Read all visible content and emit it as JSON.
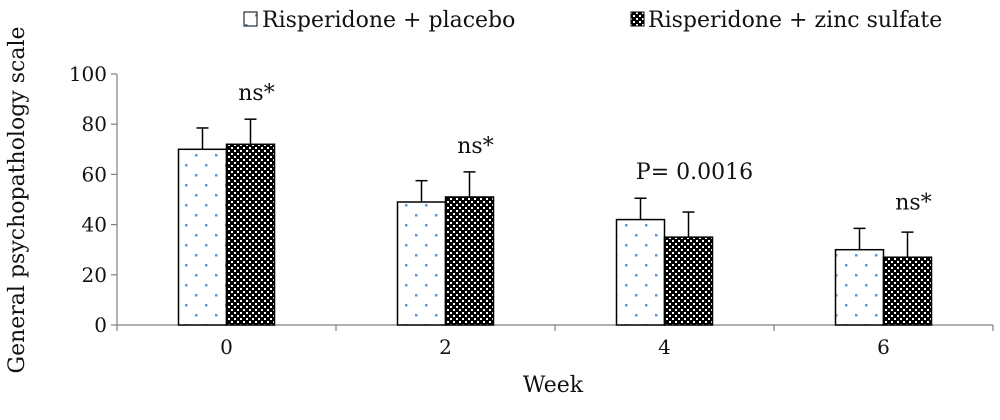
{
  "chart_data": {
    "type": "bar",
    "title": "",
    "xlabel": "Week",
    "ylabel": "General psychopathology scale",
    "categories": [
      "0",
      "2",
      "4",
      "6"
    ],
    "ylim": [
      0,
      100
    ],
    "yticks": [
      "0",
      "20",
      "40",
      "60",
      "80",
      "100"
    ],
    "grid": false,
    "legend_position": "top",
    "series": [
      {
        "name": "Risperidone + placebo",
        "values": [
          70,
          49,
          42,
          30
        ],
        "error": [
          8.5,
          8.5,
          8.5,
          8.5
        ],
        "pattern": "dotted"
      },
      {
        "name": "Risperidone + zinc sulfate",
        "values": [
          72,
          51,
          35,
          27
        ],
        "error": [
          10,
          10,
          10,
          10
        ],
        "pattern": "checkered"
      }
    ],
    "annotations": [
      "ns*",
      "ns*",
      "P= 0.0016",
      "ns*"
    ],
    "colors": {
      "bar_border": "#000000",
      "dot_pattern": "#5b9bd5",
      "checker_dark": "#000000",
      "checker_light": "#ffffff"
    }
  }
}
